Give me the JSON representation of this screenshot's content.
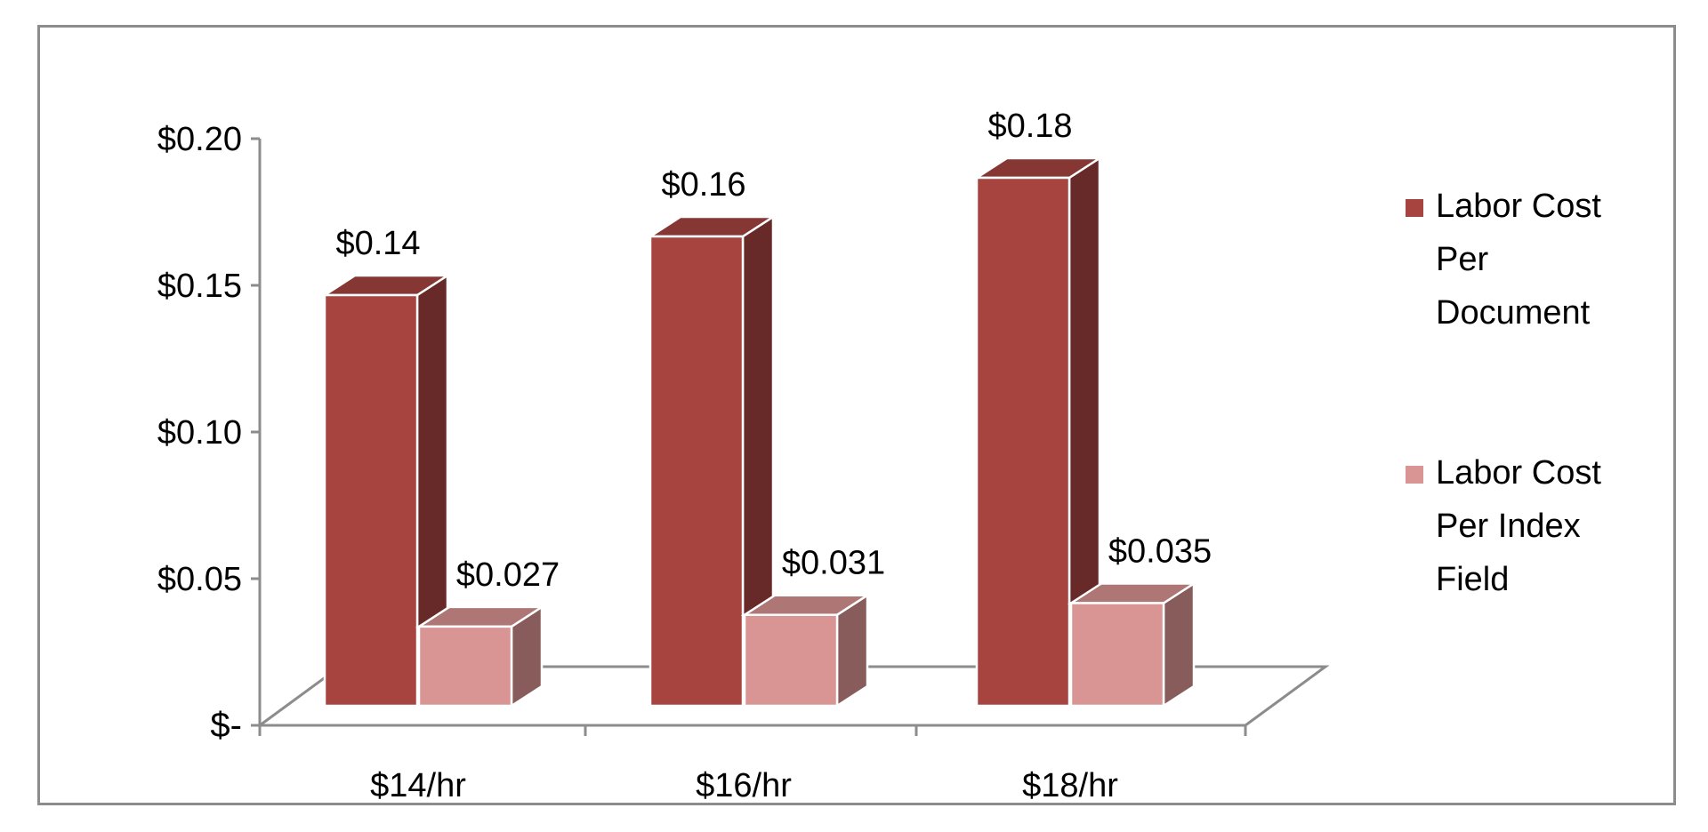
{
  "chart_data": {
    "type": "bar",
    "style": "3d-clustered-column",
    "categories": [
      "$14/hr",
      "$16/hr",
      "$18/hr"
    ],
    "series": [
      {
        "name": "Labor Cost Per Document",
        "legend_lines": [
          "Labor Cost",
          "Per",
          "Document"
        ],
        "values": [
          0.14,
          0.16,
          0.18
        ],
        "value_labels": [
          "$0.14",
          "$0.16",
          "$0.18"
        ],
        "color": "#a84440"
      },
      {
        "name": "Labor Cost Per Index Field",
        "legend_lines": [
          "Labor Cost",
          "Per Index",
          "Field"
        ],
        "values": [
          0.027,
          0.031,
          0.035
        ],
        "value_labels": [
          "$0.027",
          "$0.031",
          "$0.035"
        ],
        "color": "#d99593"
      }
    ],
    "y_ticks": [
      {
        "value": 0,
        "label": "$-"
      },
      {
        "value": 0.05,
        "label": "$0.05"
      },
      {
        "value": 0.1,
        "label": "$0.10"
      },
      {
        "value": 0.15,
        "label": "$0.15"
      },
      {
        "value": 0.2,
        "label": "$0.20"
      }
    ],
    "ylim": [
      0,
      0.2
    ],
    "title": "",
    "xlabel": "",
    "ylabel": "",
    "grid": false,
    "legend_position": "right"
  }
}
